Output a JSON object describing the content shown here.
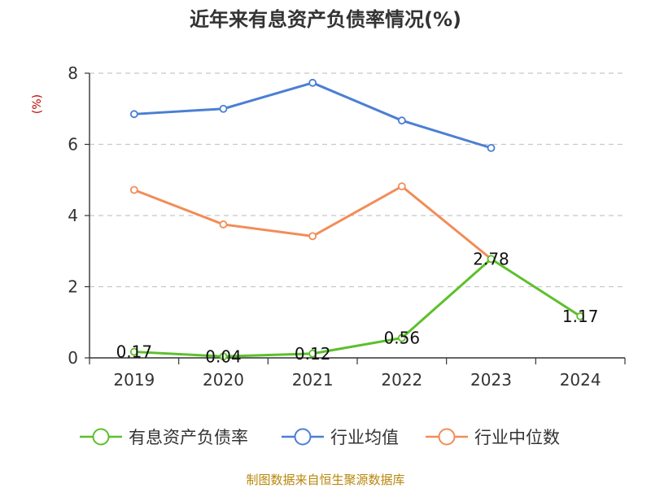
{
  "chart_data": {
    "type": "line",
    "title": "近年来有息资产负债率情况(%)",
    "ylabel": "(%)",
    "categories": [
      "2019",
      "2020",
      "2021",
      "2022",
      "2023",
      "2024"
    ],
    "ylim": [
      0,
      8
    ],
    "yticks": [
      0,
      2,
      4,
      6,
      8
    ],
    "grid": true,
    "legend": "bottom",
    "series": [
      {
        "name": "有息资产负债率",
        "color": "#5cc02b",
        "values": [
          0.17,
          0.04,
          0.12,
          0.56,
          2.78,
          1.17
        ],
        "labels": [
          "0.17",
          "0.04",
          "0.12",
          "0.56",
          "2.78",
          "1.17"
        ]
      },
      {
        "name": "行业均值",
        "color": "#4a7fd4",
        "values": [
          6.85,
          7.0,
          7.73,
          6.67,
          5.9,
          null
        ]
      },
      {
        "name": "行业中位数",
        "color": "#f28c58",
        "values": [
          4.72,
          3.75,
          3.42,
          4.82,
          2.78,
          null
        ]
      }
    ],
    "source": "制图数据来自恒生聚源数据库"
  }
}
